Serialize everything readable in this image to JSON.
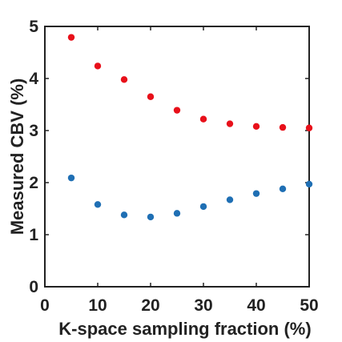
{
  "chart_data": {
    "type": "scatter",
    "title": "",
    "xlabel": "K-space sampling fraction (%)",
    "ylabel": "Measured CBV (%)",
    "xlim": [
      0,
      50
    ],
    "ylim": [
      0,
      5
    ],
    "xticks": [
      0,
      10,
      20,
      30,
      40,
      50
    ],
    "yticks": [
      0,
      1,
      2,
      3,
      4,
      5
    ],
    "grid": false,
    "legend": "none",
    "series": [
      {
        "color": "#e8101a",
        "x": [
          5,
          10,
          15,
          20,
          25,
          30,
          35,
          40,
          45,
          50
        ],
        "y": [
          4.79,
          4.24,
          3.98,
          3.65,
          3.39,
          3.22,
          3.13,
          3.08,
          3.06,
          3.05
        ]
      },
      {
        "color": "#1f6fb4",
        "x": [
          5,
          10,
          15,
          20,
          25,
          30,
          35,
          40,
          45,
          50
        ],
        "y": [
          2.09,
          1.58,
          1.38,
          1.34,
          1.41,
          1.54,
          1.67,
          1.79,
          1.88,
          1.97
        ]
      }
    ]
  }
}
